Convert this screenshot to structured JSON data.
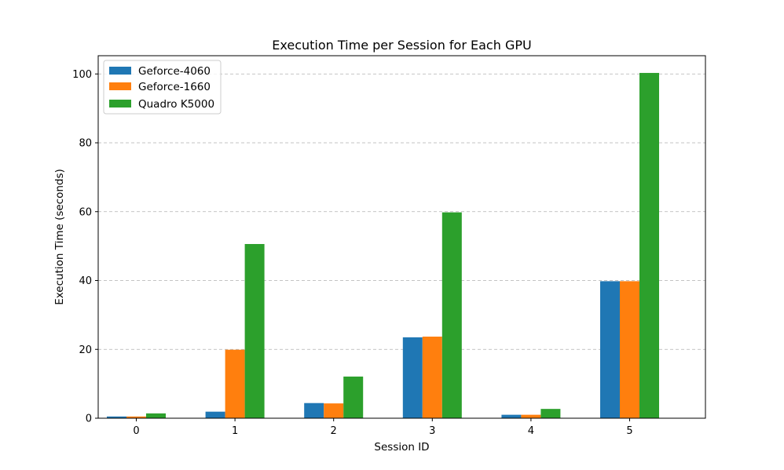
{
  "chart_data": {
    "type": "bar",
    "title": "Execution Time per Session for Each GPU",
    "xlabel": "Session ID",
    "ylabel": "Execution Time (seconds)",
    "categories": [
      "0",
      "1",
      "2",
      "3",
      "4",
      "5"
    ],
    "series": [
      {
        "name": "Geforce-4060",
        "color": "#1f77b4",
        "values": [
          0.5,
          1.9,
          4.4,
          23.5,
          1.0,
          39.8
        ]
      },
      {
        "name": "Geforce-1660",
        "color": "#ff7f0e",
        "values": [
          0.5,
          19.9,
          4.3,
          23.7,
          1.0,
          39.8
        ]
      },
      {
        "name": "Quadro K5000",
        "color": "#2ca02c",
        "values": [
          1.4,
          50.6,
          12.1,
          59.8,
          2.7,
          100.3
        ]
      }
    ],
    "ylim": [
      0,
      105.3
    ],
    "yticks": [
      0,
      20,
      40,
      60,
      80,
      100
    ],
    "xticks": [
      "0",
      "1",
      "2",
      "3",
      "4",
      "5"
    ],
    "grid": "y-axis dashed",
    "legend_position": "top-left"
  }
}
